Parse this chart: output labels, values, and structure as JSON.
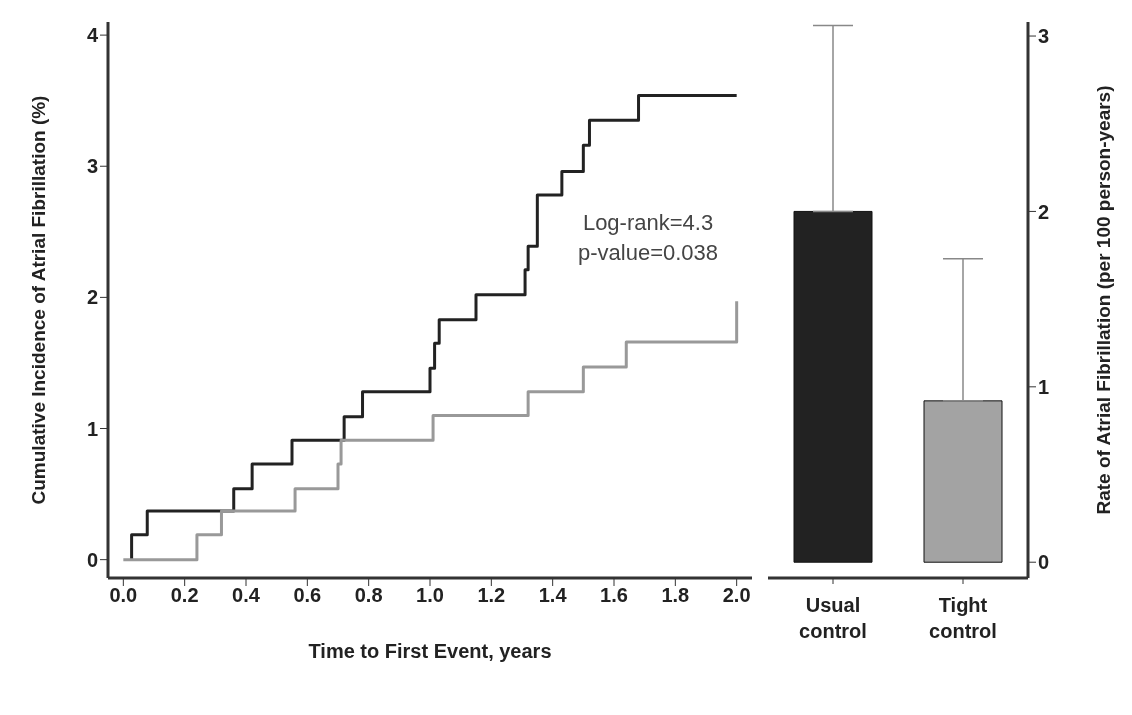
{
  "chart_data": [
    {
      "type": "step",
      "xlabel": "Time to First Event, years",
      "ylabel": "Cumulative Incidence of Atrial Fibrillation (%)",
      "xlim": [
        -0.05,
        2.05
      ],
      "xticks": [
        {
          "value": 0,
          "label": "0.0"
        },
        {
          "value": 0.2,
          "label": "0.2"
        },
        {
          "value": 0.4,
          "label": "0.4"
        },
        {
          "value": 0.6,
          "label": "0.6"
        },
        {
          "value": 0.8,
          "label": "0.8"
        },
        {
          "value": 1,
          "label": "1.0"
        },
        {
          "value": 1.2,
          "label": "1.2"
        },
        {
          "value": 1.4,
          "label": "1.4"
        },
        {
          "value": 1.6,
          "label": "1.6"
        },
        {
          "value": 1.8,
          "label": "1.8"
        },
        {
          "value": 2,
          "label": "2.0"
        }
      ],
      "ylim": [
        -0.14,
        4.1
      ],
      "yticks": [
        0,
        1,
        2,
        3,
        4
      ],
      "grid": false,
      "legend": false,
      "series": [
        {
          "color": "#222222",
          "x": [
            0.027,
            0.027,
            0.078,
            0.36,
            0.42,
            0.55,
            0.72,
            0.78,
            1.0,
            1.015,
            1.03,
            1.15,
            1.31,
            1.32,
            1.35,
            1.43,
            1.5,
            1.52,
            1.68,
            2.0
          ],
          "values": [
            0,
            0.19,
            0.37,
            0.54,
            0.73,
            0.91,
            1.09,
            1.28,
            1.46,
            1.65,
            1.83,
            2.02,
            2.21,
            2.39,
            2.78,
            2.96,
            3.16,
            3.35,
            3.54,
            3.54
          ]
        },
        {
          "color": "#999999",
          "x": [
            0,
            0.24,
            0.32,
            0.56,
            0.7,
            0.71,
            1.01,
            1.32,
            1.5,
            1.64,
            2.0,
            2.0
          ],
          "values": [
            0,
            0.19,
            0.37,
            0.54,
            0.73,
            0.91,
            1.1,
            1.28,
            1.47,
            1.66,
            1.66,
            1.97
          ]
        }
      ],
      "annotations": [
        "Log-rank=4.3",
        "p-value=0.038"
      ]
    },
    {
      "type": "bar",
      "categories": [
        "Usual control",
        "Tight control"
      ],
      "y2label": "Rate of Atrial Fibrillation (per 100 person-years)",
      "y2lim": [
        -0.09,
        3.08
      ],
      "y2ticks": [
        0,
        1,
        2,
        3
      ],
      "grid": false,
      "legend": false,
      "series": [
        {
          "axis": "y2",
          "colors": [
            "#222222",
            "#a3a3a3"
          ],
          "values": [
            2.0,
            0.92
          ],
          "errors": [
            [
              2.0,
              3.06
            ],
            [
              0.92,
              1.73
            ]
          ]
        }
      ]
    }
  ]
}
